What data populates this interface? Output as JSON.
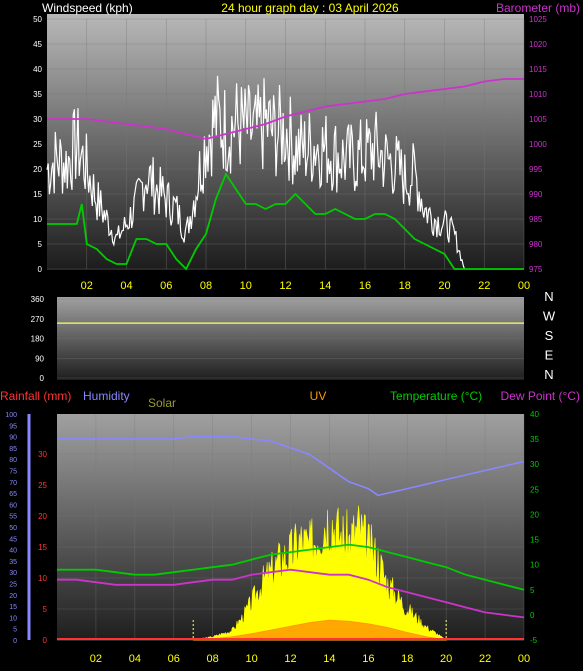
{
  "title": "24 hour graph day : 03 April 2026",
  "labels": {
    "windspeed": "Windspeed (kph)",
    "barometer": "Barometer (mb)",
    "rainfall": "Rainfall (mm)",
    "humidity": "Humidity",
    "solar": "Solar",
    "uv": "UV",
    "temperature": "Temperature (°C)",
    "dewpoint": "Dew Point (°C)"
  },
  "colors": {
    "background": "#000000",
    "title": "#ffff00",
    "windspeed_label": "#ffffff",
    "gust": "#ffffff",
    "average_wind": "#00cc00",
    "barometer": "#cc33cc",
    "direction": "#ffff66",
    "rainfall": "#ff3333",
    "humidity": "#8888ff",
    "solar": "#ffff00",
    "solar_label": "#999933",
    "uv": "#ff9900",
    "temperature": "#00cc00",
    "dewpoint": "#cc33cc"
  },
  "x_ticks": [
    "02",
    "04",
    "06",
    "08",
    "10",
    "12",
    "14",
    "16",
    "18",
    "20",
    "22",
    "00"
  ],
  "compass": [
    "N",
    "W",
    "S",
    "E",
    "N"
  ],
  "chart_data": [
    {
      "type": "line",
      "name": "wind",
      "x_unit": "hour",
      "xlim": [
        0,
        24
      ],
      "y_label": "Windspeed (kph)",
      "ylim": [
        0,
        50
      ],
      "y_ticks": [
        0,
        5,
        10,
        15,
        20,
        25,
        30,
        35,
        40,
        45,
        50
      ],
      "y2_label": "Barometer (mb)",
      "y2lim": [
        975,
        1025
      ],
      "y2_ticks": [
        975,
        980,
        985,
        990,
        995,
        1000,
        1005,
        1010,
        1015,
        1020,
        1025
      ],
      "series": [
        {
          "key": "gust",
          "x": [
            0,
            0.5,
            1,
            1.5,
            2,
            2.5,
            3,
            3.5,
            4,
            4.5,
            5,
            5.5,
            6,
            6.5,
            7,
            7.5,
            8,
            8.5,
            9,
            9.5,
            10,
            10.5,
            11,
            11.5,
            12,
            12.5,
            13,
            13.5,
            14,
            14.5,
            15,
            15.5,
            16,
            16.5,
            17,
            17.5,
            18,
            18.5,
            19,
            19.5,
            20,
            20.5,
            21
          ],
          "values": [
            20,
            22,
            21,
            25,
            20,
            14,
            10,
            6,
            9,
            13,
            19,
            16,
            14,
            12,
            7,
            16,
            26,
            30,
            28,
            29,
            28,
            27,
            29,
            27,
            28,
            24,
            24,
            25,
            24,
            23,
            22,
            22,
            23,
            24,
            22,
            21,
            18,
            19,
            12,
            10,
            9,
            7,
            0
          ]
        },
        {
          "key": "average",
          "x": [
            0,
            0.5,
            1,
            1.5,
            1.75,
            2,
            2.5,
            3,
            3.5,
            4,
            4.5,
            5,
            5.5,
            6,
            6.5,
            7,
            7.5,
            8,
            8.5,
            9,
            9.5,
            10,
            10.5,
            11,
            11.5,
            12,
            12.5,
            13,
            13.5,
            14,
            14.5,
            15,
            15.5,
            16,
            16.5,
            17,
            17.5,
            18,
            18.5,
            19,
            19.5,
            20,
            20.5,
            21,
            22,
            23,
            24
          ],
          "values": [
            9,
            9,
            9,
            9,
            13,
            5,
            4,
            2,
            1,
            1,
            6,
            6,
            5,
            5,
            2,
            0,
            4,
            7,
            14,
            19,
            16,
            13,
            13,
            12,
            13,
            13,
            15,
            13,
            11,
            11,
            12,
            11,
            10,
            10,
            11,
            11,
            10,
            8,
            6,
            5,
            4,
            3,
            0,
            0,
            0,
            0,
            0
          ]
        },
        {
          "key": "barometer",
          "axis": "y2",
          "x": [
            0,
            1,
            2,
            3,
            4,
            5,
            6,
            7,
            8,
            9,
            10,
            11,
            12,
            13,
            14,
            15,
            16,
            17,
            18,
            19,
            20,
            21,
            22,
            23,
            24
          ],
          "values": [
            1005,
            1005,
            1005,
            1004.5,
            1004,
            1003.5,
            1003,
            1002,
            1001,
            1002,
            1003,
            1004,
            1005.5,
            1006.5,
            1007.5,
            1008,
            1008.5,
            1009,
            1010,
            1010.5,
            1011,
            1011.5,
            1012.5,
            1013,
            1013
          ]
        }
      ]
    },
    {
      "type": "line",
      "name": "wind_direction",
      "xlim": [
        0,
        24
      ],
      "ylim": [
        0,
        360
      ],
      "y_ticks": [
        0,
        90,
        180,
        270,
        360
      ],
      "series": [
        {
          "key": "direction",
          "x": [
            0,
            24
          ],
          "values": [
            250,
            250
          ]
        }
      ]
    },
    {
      "type": "line",
      "name": "weather",
      "xlim": [
        0,
        24
      ],
      "y_left_humidity_lim": [
        0,
        100
      ],
      "humidity_ticks": [
        0,
        5,
        10,
        15,
        20,
        25,
        30,
        35,
        40,
        45,
        50,
        55,
        60,
        65,
        70,
        75,
        80,
        85,
        90,
        95,
        100
      ],
      "rain_lim": [
        0,
        30
      ],
      "rain_ticks": [
        0,
        5,
        10,
        15,
        20,
        25,
        30
      ],
      "temp_lim": [
        -5,
        40
      ],
      "temp_ticks": [
        -5,
        0,
        5,
        10,
        15,
        20,
        25,
        30,
        35,
        40
      ],
      "series": [
        {
          "key": "humidity",
          "x": [
            0,
            1,
            2,
            3,
            4,
            5,
            6,
            7,
            8,
            9,
            10,
            11,
            12,
            13,
            14,
            15,
            16,
            16.5,
            17,
            18,
            19,
            20,
            21,
            22,
            23,
            24
          ],
          "values": [
            89,
            89,
            89,
            89,
            89,
            89,
            89,
            90,
            90,
            90,
            89,
            88,
            85,
            82,
            76,
            70,
            67,
            64,
            65,
            67,
            69,
            71,
            73,
            75,
            77,
            79
          ]
        },
        {
          "key": "temperature",
          "x": [
            0,
            1,
            2,
            3,
            4,
            5,
            6,
            7,
            8,
            9,
            10,
            11,
            12,
            13,
            14,
            15,
            16,
            17,
            18,
            19,
            20,
            21,
            22,
            23,
            24
          ],
          "values": [
            9,
            9,
            9,
            8.5,
            8,
            8,
            8.5,
            9,
            9.5,
            10,
            11,
            12,
            12.5,
            13,
            13.5,
            14,
            13.5,
            12.5,
            11.5,
            10.5,
            9.5,
            8,
            7,
            6,
            5
          ]
        },
        {
          "key": "dewpoint",
          "x": [
            0,
            1,
            2,
            3,
            4,
            5,
            6,
            7,
            8,
            9,
            10,
            11,
            12,
            13,
            14,
            15,
            16,
            17,
            18,
            19,
            20,
            21,
            22,
            23,
            24
          ],
          "values": [
            7,
            7,
            6.5,
            6,
            6,
            6,
            6,
            6.5,
            7,
            7,
            8,
            8.5,
            9,
            8.5,
            8,
            8,
            7,
            5.5,
            4.5,
            3.5,
            2.5,
            1.5,
            0.5,
            0,
            -0.5
          ]
        },
        {
          "key": "solar",
          "axis": "rain",
          "x": [
            7,
            8,
            9,
            9.5,
            10,
            10.5,
            11,
            11.5,
            12,
            12.5,
            13,
            13.5,
            14,
            14.5,
            15,
            15.5,
            16,
            16.5,
            17,
            17.5,
            18,
            18.5,
            19,
            19.5,
            20
          ],
          "values": [
            0,
            0.5,
            1.5,
            3.5,
            6,
            9,
            11,
            13,
            14,
            16,
            15,
            18,
            20,
            17,
            16,
            18,
            15,
            13,
            9,
            7,
            5,
            3.5,
            2,
            1,
            0
          ]
        },
        {
          "key": "uv",
          "axis": "rain",
          "x": [
            7,
            8,
            9,
            10,
            11,
            12,
            13,
            14,
            15,
            16,
            17,
            18,
            19,
            20
          ],
          "values": [
            0,
            0.2,
            0.5,
            1,
            1.6,
            2.2,
            2.8,
            3.2,
            3.0,
            2.6,
            2.0,
            1.2,
            0.5,
            0
          ]
        },
        {
          "key": "rainfall",
          "axis": "rain",
          "x": [
            0,
            24
          ],
          "values": [
            0,
            0
          ]
        }
      ]
    }
  ]
}
